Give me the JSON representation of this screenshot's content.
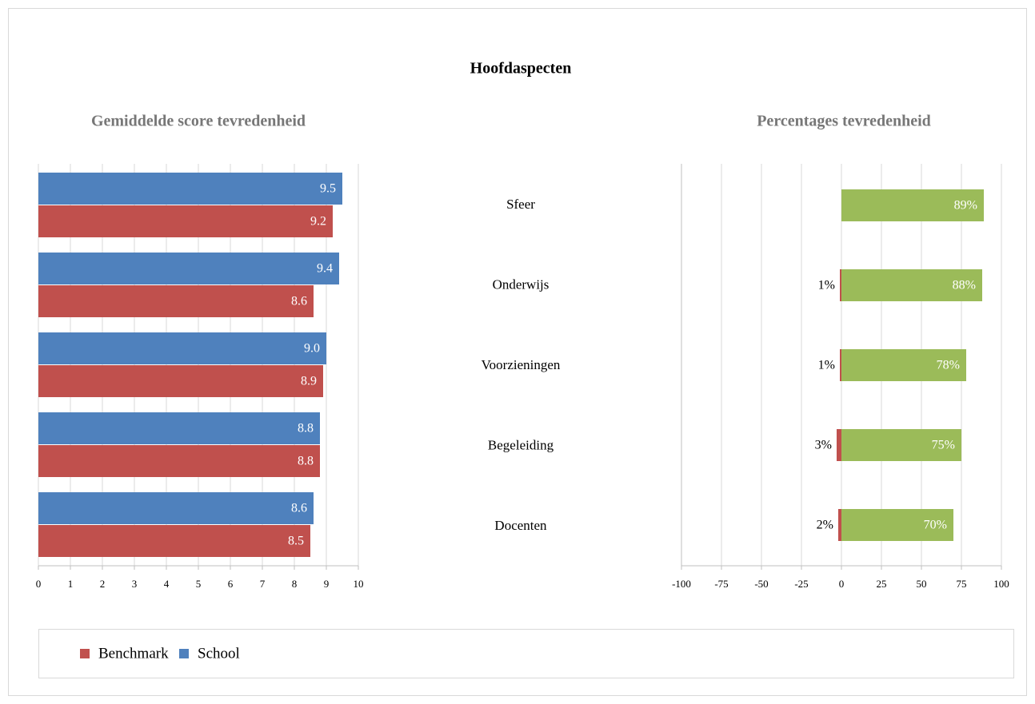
{
  "title": "Hoofdaspecten",
  "chart_data": [
    {
      "type": "hbar",
      "title": "Gemiddelde score tevredenheid",
      "series": [
        {
          "name": "Benchmark",
          "color": "#c0504d",
          "values": [
            9.2,
            8.6,
            8.9,
            8.8,
            8.5
          ],
          "value_labels": [
            "9.2",
            "8.6",
            "8.9",
            "8.8",
            "8.5"
          ]
        },
        {
          "name": "School",
          "color": "#4f81bd",
          "values": [
            9.5,
            9.4,
            9.0,
            8.8,
            8.6
          ],
          "value_labels": [
            "9.5",
            "9.4",
            "9.0",
            "8.8",
            "8.6"
          ]
        }
      ],
      "xlim": [
        0,
        10
      ],
      "xticks": [
        0,
        1,
        2,
        3,
        4,
        5,
        6,
        7,
        8,
        9,
        10
      ],
      "grid": true
    },
    {
      "type": "diverging",
      "title": "Percentages tevredenheid",
      "categories": [
        "Sfeer",
        "Onderwijs",
        "Voorzieningen",
        "Begeleiding",
        "Docenten"
      ],
      "series": [
        {
          "color": "#c0504d",
          "values": [
            null,
            -1,
            -1,
            -3,
            -2
          ],
          "value_labels": [
            null,
            "1%",
            "1%",
            "3%",
            "2%"
          ]
        },
        {
          "color": "#9bbb59",
          "values": [
            89,
            88,
            78,
            75,
            70
          ],
          "value_labels": [
            "89%",
            "88%",
            "78%",
            "75%",
            "70%"
          ]
        }
      ],
      "xlim": [
        -100,
        100
      ],
      "xticks": [
        -100,
        -75,
        -50,
        -25,
        0,
        25,
        50,
        75,
        100
      ],
      "grid": true
    }
  ]
}
